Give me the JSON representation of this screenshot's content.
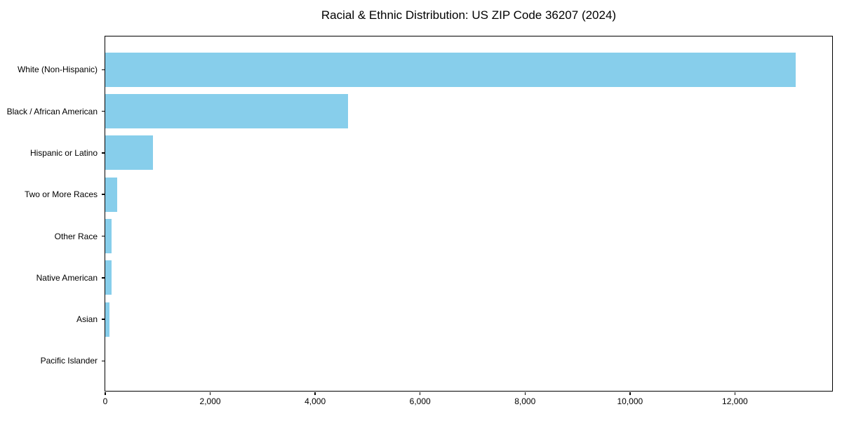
{
  "chart_data": {
    "type": "bar",
    "orientation": "horizontal",
    "title": "Racial & Ethnic Distribution: US ZIP Code 36207 (2024)",
    "categories": [
      "White (Non-Hispanic)",
      "Black / African American",
      "Hispanic or Latino",
      "Two or More Races",
      "Other Race",
      "Native American",
      "Asian",
      "Pacific Islander"
    ],
    "values": [
      13160,
      4630,
      905,
      230,
      125,
      115,
      85,
      0
    ],
    "bar_color": "#87CEEB",
    "xlabel": "",
    "ylabel": "",
    "xlim": [
      0,
      13840
    ],
    "x_ticks": [
      0,
      2000,
      4000,
      6000,
      8000,
      10000,
      12000
    ],
    "x_tick_labels": [
      "0",
      "2,000",
      "4,000",
      "6,000",
      "8,000",
      "10,000",
      "12,000"
    ],
    "grid": false,
    "legend": null
  }
}
